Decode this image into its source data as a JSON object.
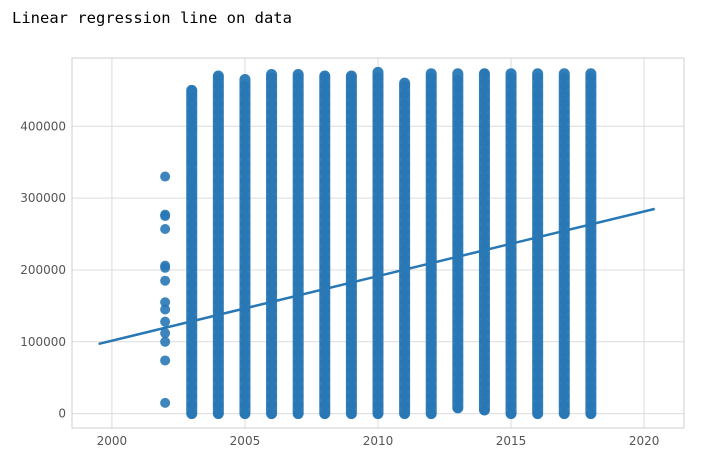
{
  "caption": "Linear regression line on data",
  "chart_data": {
    "type": "scatter",
    "title": "",
    "xlabel": "",
    "ylabel": "",
    "xlim": [
      1998.5,
      2021.5
    ],
    "ylim": [
      -20000,
      495000
    ],
    "grid": true,
    "x_ticks": [
      2000,
      2005,
      2010,
      2015,
      2020
    ],
    "y_ticks": [
      0,
      100000,
      200000,
      300000,
      400000
    ],
    "x_tick_labels": [
      "2000",
      "2005",
      "2010",
      "2015",
      "2020"
    ],
    "y_tick_labels": [
      "0",
      "100000",
      "200000",
      "300000",
      "400000"
    ],
    "point_color": "#2878b5",
    "line_color": "#2878b5",
    "series": [
      {
        "type": "scatter",
        "columns": [
          {
            "x": 2002,
            "y_min": 15000,
            "y_max": 330000
          },
          {
            "x": 2003,
            "y_min": 0,
            "y_max": 450000
          },
          {
            "x": 2004,
            "y_min": 0,
            "y_max": 470000
          },
          {
            "x": 2005,
            "y_min": 0,
            "y_max": 465000
          },
          {
            "x": 2006,
            "y_min": 0,
            "y_max": 472000
          },
          {
            "x": 2007,
            "y_min": 0,
            "y_max": 472000
          },
          {
            "x": 2008,
            "y_min": 0,
            "y_max": 470000
          },
          {
            "x": 2009,
            "y_min": 0,
            "y_max": 470000
          },
          {
            "x": 2010,
            "y_min": 0,
            "y_max": 475000
          },
          {
            "x": 2011,
            "y_min": 0,
            "y_max": 460000
          },
          {
            "x": 2012,
            "y_min": 0,
            "y_max": 473000
          },
          {
            "x": 2013,
            "y_min": 8000,
            "y_max": 473000
          },
          {
            "x": 2014,
            "y_min": 5000,
            "y_max": 473000
          },
          {
            "x": 2015,
            "y_min": 0,
            "y_max": 473000
          },
          {
            "x": 2016,
            "y_min": 0,
            "y_max": 473000
          },
          {
            "x": 2017,
            "y_min": 0,
            "y_max": 473000
          },
          {
            "x": 2018,
            "y_min": 0,
            "y_max": 473000
          }
        ],
        "points": [
          [
            2002,
            330000
          ],
          [
            2002,
            277000
          ],
          [
            2002,
            275000
          ],
          [
            2002,
            257000
          ],
          [
            2002,
            206000
          ],
          [
            2002,
            203000
          ],
          [
            2002,
            185000
          ],
          [
            2002,
            155000
          ],
          [
            2002,
            145000
          ],
          [
            2002,
            128000
          ],
          [
            2002,
            112000
          ],
          [
            2002,
            100000
          ],
          [
            2002,
            74000
          ],
          [
            2002,
            15000
          ],
          [
            2003,
            450000
          ],
          [
            2003,
            410000
          ],
          [
            2003,
            395000
          ],
          [
            2003,
            380000
          ],
          [
            2003,
            365000
          ],
          [
            2003,
            350000
          ],
          [
            2003,
            330000
          ],
          [
            2003,
            322000
          ],
          [
            2003,
            305000
          ]
        ]
      },
      {
        "type": "line",
        "x": [
          1999.5,
          2020.4
        ],
        "y": [
          97000,
          285000
        ]
      }
    ]
  }
}
